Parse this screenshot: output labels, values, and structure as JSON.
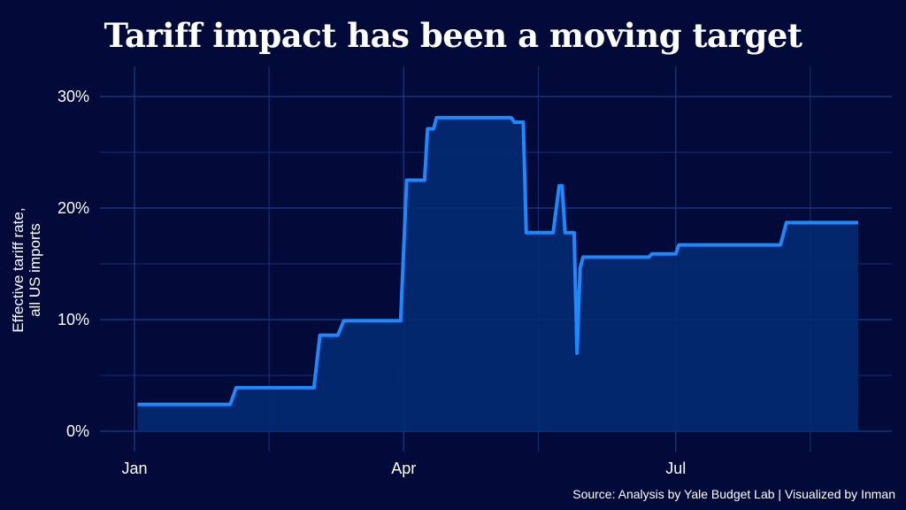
{
  "chart_data": {
    "type": "area",
    "title": "Tariff impact has been a moving target",
    "ylabel": "Effective tariff rate, all US imports",
    "ylabel_lines": [
      "Effective tariff rate,",
      "all US imports"
    ],
    "xlabel": "",
    "source": "Source: Analysis by Yale Budget Lab | Visualized by Inman",
    "ylim": [
      0,
      30
    ],
    "yticks": [
      {
        "value": 0,
        "label": "0%"
      },
      {
        "value": 10,
        "label": "10%"
      },
      {
        "value": 20,
        "label": "20%"
      },
      {
        "value": 30,
        "label": "30%"
      }
    ],
    "xticks": [
      {
        "date": "2025-01-01",
        "label": "Jan"
      },
      {
        "date": "2025-04-01",
        "label": "Apr"
      },
      {
        "date": "2025-07-01",
        "label": "Jul"
      }
    ],
    "grid": true,
    "colors": {
      "background": "#010a38",
      "line": "#1e88ff",
      "fill": "#032a72",
      "grid": "#1d3a8a"
    },
    "series": [
      {
        "points": [
          {
            "date": "2025-01-02",
            "value": 2.4
          },
          {
            "date": "2025-02-02",
            "value": 2.4
          },
          {
            "date": "2025-02-04",
            "value": 3.9
          },
          {
            "date": "2025-03-02",
            "value": 3.9
          },
          {
            "date": "2025-03-04",
            "value": 8.6
          },
          {
            "date": "2025-03-10",
            "value": 8.6
          },
          {
            "date": "2025-03-12",
            "value": 9.9
          },
          {
            "date": "2025-03-31",
            "value": 9.9
          },
          {
            "date": "2025-04-02",
            "value": 22.5
          },
          {
            "date": "2025-04-08",
            "value": 22.5
          },
          {
            "date": "2025-04-09",
            "value": 27.1
          },
          {
            "date": "2025-04-11",
            "value": 27.1
          },
          {
            "date": "2025-04-12",
            "value": 28.1
          },
          {
            "date": "2025-05-07",
            "value": 28.1
          },
          {
            "date": "2025-05-08",
            "value": 27.7
          },
          {
            "date": "2025-05-11",
            "value": 27.7
          },
          {
            "date": "2025-05-12",
            "value": 17.8
          },
          {
            "date": "2025-05-21",
            "value": 17.8
          },
          {
            "date": "2025-05-23",
            "value": 22.0
          },
          {
            "date": "2025-05-24",
            "value": 22.0
          },
          {
            "date": "2025-05-25",
            "value": 17.8
          },
          {
            "date": "2025-05-28",
            "value": 17.8
          },
          {
            "date": "2025-05-29",
            "value": 7.0
          },
          {
            "date": "2025-05-30",
            "value": 14.6
          },
          {
            "date": "2025-05-31",
            "value": 15.6
          },
          {
            "date": "2025-06-22",
            "value": 15.6
          },
          {
            "date": "2025-06-23",
            "value": 15.9
          },
          {
            "date": "2025-07-01",
            "value": 15.9
          },
          {
            "date": "2025-07-02",
            "value": 16.7
          },
          {
            "date": "2025-08-05",
            "value": 16.7
          },
          {
            "date": "2025-08-07",
            "value": 18.7
          },
          {
            "date": "2025-08-31",
            "value": 18.7
          }
        ]
      }
    ]
  }
}
